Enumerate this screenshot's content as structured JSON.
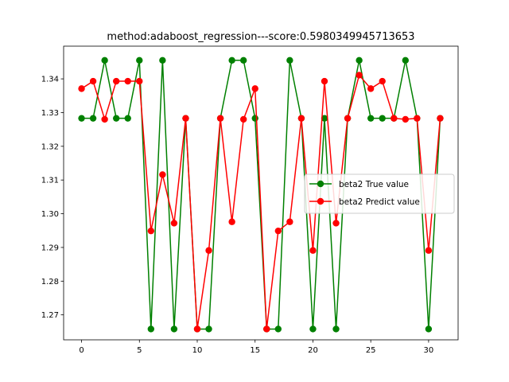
{
  "chart_data": {
    "type": "line",
    "title": "method:adaboost_regression---score:0.5980349945713653",
    "xlabel": "",
    "ylabel": "",
    "xlim": [
      -1.55,
      32.55
    ],
    "ylim": [
      1.2626,
      1.3497
    ],
    "x_ticks": [
      0,
      5,
      10,
      15,
      20,
      25,
      30
    ],
    "x_tick_labels": [
      "0",
      "5",
      "10",
      "15",
      "20",
      "25",
      "30"
    ],
    "y_ticks": [
      1.27,
      1.28,
      1.29,
      1.3,
      1.31,
      1.32,
      1.33,
      1.34
    ],
    "y_tick_labels": [
      "1.27",
      "1.28",
      "1.29",
      "1.30",
      "1.31",
      "1.32",
      "1.33",
      "1.34"
    ],
    "grid": false,
    "legend_position": "center-right",
    "x": [
      0,
      1,
      2,
      3,
      4,
      5,
      6,
      7,
      8,
      9,
      10,
      11,
      12,
      13,
      14,
      15,
      16,
      17,
      18,
      19,
      20,
      21,
      22,
      23,
      24,
      25,
      26,
      27,
      28,
      29,
      30,
      31
    ],
    "series": [
      {
        "name": "beta2 True value",
        "color": "#008000",
        "marker": "circle",
        "values": [
          1.3283,
          1.3283,
          1.3455,
          1.3283,
          1.3283,
          1.3455,
          1.2658,
          1.3455,
          1.2658,
          1.3283,
          1.2658,
          1.2658,
          1.3283,
          1.3455,
          1.3455,
          1.3283,
          1.2658,
          1.2658,
          1.3455,
          1.3283,
          1.2658,
          1.3283,
          1.2658,
          1.3283,
          1.3455,
          1.3283,
          1.3283,
          1.3283,
          1.3455,
          1.3283,
          1.2658,
          1.3283
        ]
      },
      {
        "name": "beta2 Predict value",
        "color": "#ff0000",
        "marker": "circle",
        "values": [
          1.3371,
          1.3393,
          1.328,
          1.3393,
          1.3393,
          1.3393,
          1.2949,
          1.3116,
          1.2972,
          1.3283,
          1.2658,
          1.2891,
          1.3283,
          1.2976,
          1.328,
          1.3371,
          1.2658,
          1.2949,
          1.2976,
          1.3283,
          1.2891,
          1.3393,
          1.2972,
          1.3283,
          1.3411,
          1.3371,
          1.3393,
          1.3283,
          1.328,
          1.3283,
          1.2891,
          1.3283
        ]
      }
    ]
  }
}
